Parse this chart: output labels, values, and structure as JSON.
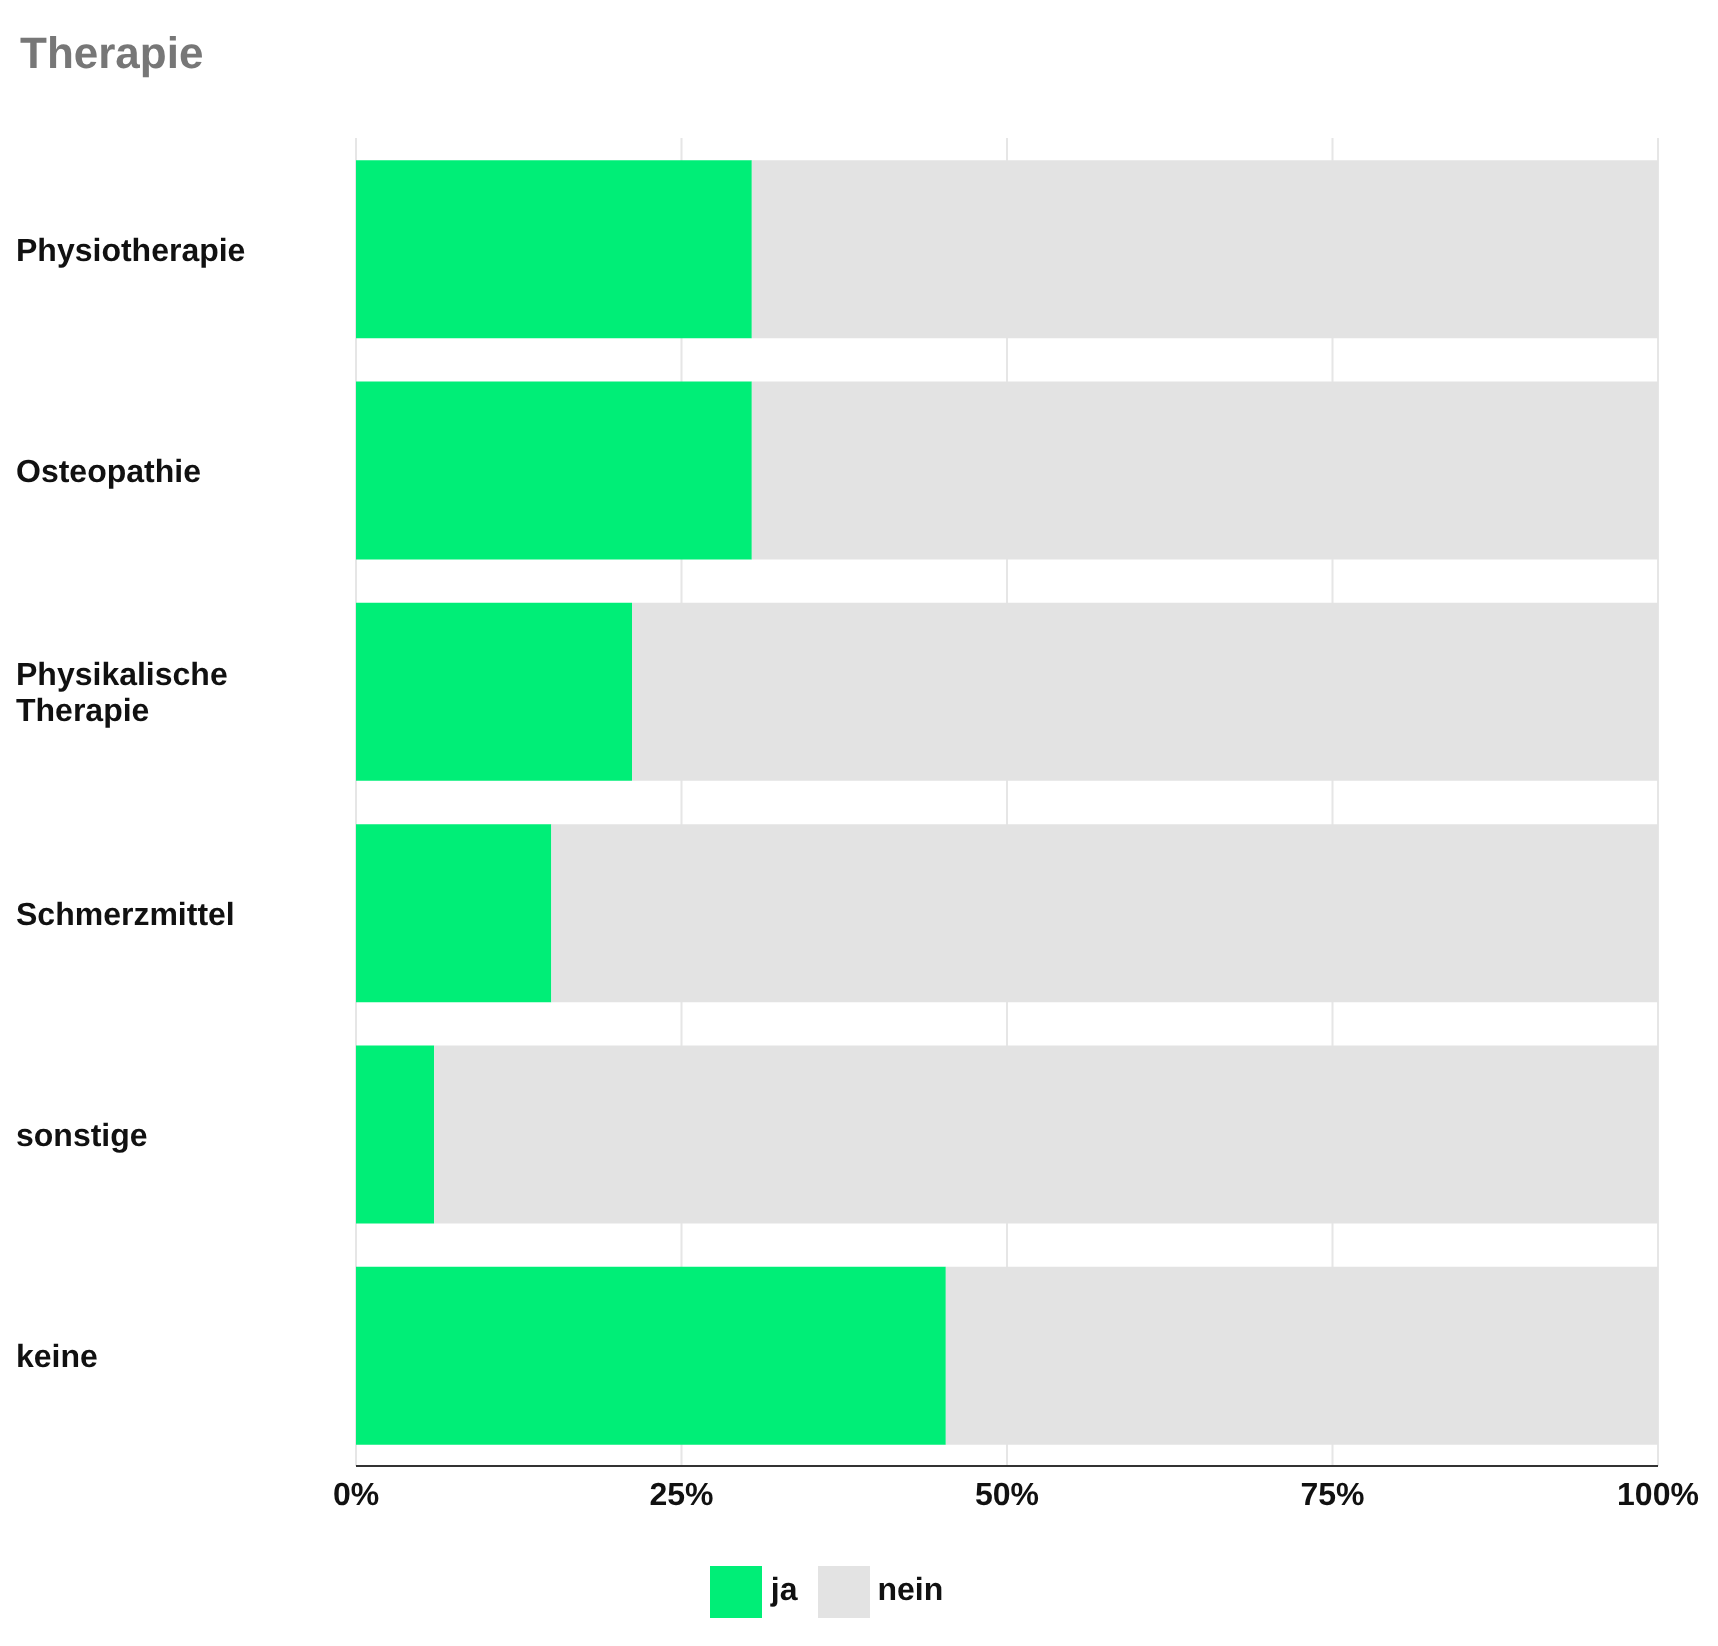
{
  "chart_data": {
    "type": "bar",
    "title": "Therapie",
    "orientation": "horizontal",
    "stacked": true,
    "categories": [
      "Physiotherapie",
      "Osteopathie",
      "Physikalische Therapie",
      "Schmerzmittel",
      "sonstige",
      "keine"
    ],
    "series": [
      {
        "name": "ja",
        "color": "#00ee77",
        "values": [
          30.4,
          30.4,
          21.2,
          15.0,
          6.0,
          45.3
        ]
      },
      {
        "name": "nein",
        "color": "#e3e3e3",
        "values": [
          69.6,
          69.6,
          78.8,
          85.0,
          94.0,
          54.7
        ]
      }
    ],
    "xlim": [
      0,
      100
    ],
    "xticks": [
      {
        "value": 0,
        "label": "0%"
      },
      {
        "value": 25,
        "label": "25%"
      },
      {
        "value": 50,
        "label": "50%"
      },
      {
        "value": 75,
        "label": "75%"
      },
      {
        "value": 100,
        "label": "100%"
      }
    ],
    "grid": "x",
    "legend": "bottom"
  }
}
